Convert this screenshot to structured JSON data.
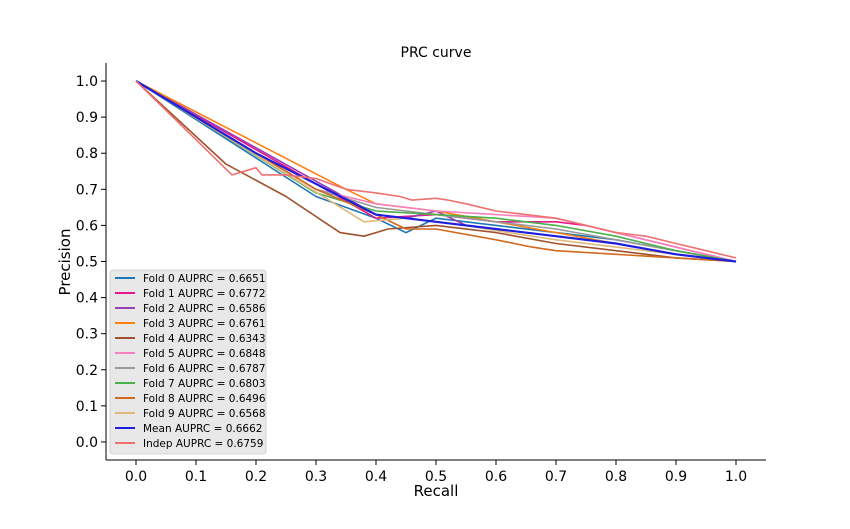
{
  "chart_data": {
    "type": "line",
    "title": "PRC curve",
    "xlabel": "Recall",
    "ylabel": "Precision",
    "xlim": [
      -0.05,
      1.05
    ],
    "ylim": [
      -0.05,
      1.05
    ],
    "x_ticks": [
      "0.0",
      "0.1",
      "0.2",
      "0.3",
      "0.4",
      "0.5",
      "0.6",
      "0.7",
      "0.8",
      "0.9",
      "1.0"
    ],
    "y_ticks": [
      "0.0",
      "0.1",
      "0.2",
      "0.3",
      "0.4",
      "0.5",
      "0.6",
      "0.7",
      "0.8",
      "0.9",
      "1.0"
    ],
    "grid": false,
    "legend_position": "lower-left",
    "series": [
      {
        "name": "Fold 0 AUPRC = 0.6651",
        "color": "#1f77b4",
        "x": [
          0.0,
          0.3,
          0.4,
          0.45,
          0.5,
          0.6,
          0.7,
          0.8,
          0.9,
          1.0
        ],
        "y": [
          1.0,
          0.68,
          0.62,
          0.58,
          0.62,
          0.6,
          0.58,
          0.56,
          0.53,
          0.5
        ]
      },
      {
        "name": "Fold 1 AUPRC = 0.6772",
        "color": "#e6198c",
        "x": [
          0.0,
          0.4,
          0.5,
          0.6,
          0.7,
          0.75,
          0.8,
          0.9,
          1.0
        ],
        "y": [
          1.0,
          0.62,
          0.63,
          0.61,
          0.61,
          0.6,
          0.58,
          0.54,
          0.5
        ]
      },
      {
        "name": "Fold 2 AUPRC = 0.6586",
        "color": "#9b3fb5",
        "x": [
          0.0,
          0.4,
          0.45,
          0.5,
          0.55,
          0.6,
          0.7,
          0.8,
          0.9,
          1.0
        ],
        "y": [
          1.0,
          0.63,
          0.62,
          0.64,
          0.6,
          0.59,
          0.57,
          0.55,
          0.52,
          0.5
        ]
      },
      {
        "name": "Fold 3 AUPRC = 0.6761",
        "color": "#ff7f0e",
        "x": [
          0.0,
          0.35,
          0.4,
          0.5,
          0.6,
          0.7,
          0.8,
          0.9,
          1.0
        ],
        "y": [
          1.0,
          0.7,
          0.66,
          0.64,
          0.61,
          0.58,
          0.55,
          0.52,
          0.5
        ]
      },
      {
        "name": "Fold 4 AUPRC = 0.6343",
        "color": "#a0522d",
        "x": [
          0.0,
          0.15,
          0.25,
          0.34,
          0.38,
          0.42,
          0.5,
          0.6,
          0.7,
          0.8,
          0.9,
          1.0
        ],
        "y": [
          1.0,
          0.77,
          0.68,
          0.58,
          0.57,
          0.59,
          0.6,
          0.58,
          0.55,
          0.53,
          0.51,
          0.5
        ]
      },
      {
        "name": "Fold 5 AUPRC = 0.6848",
        "color": "#f781bf",
        "x": [
          0.0,
          0.3,
          0.4,
          0.5,
          0.6,
          0.7,
          0.75,
          0.8,
          0.9,
          1.0
        ],
        "y": [
          1.0,
          0.7,
          0.66,
          0.64,
          0.63,
          0.62,
          0.6,
          0.58,
          0.54,
          0.5
        ]
      },
      {
        "name": "Fold 6 AUPRC = 0.6787",
        "color": "#999999",
        "x": [
          0.0,
          0.3,
          0.4,
          0.5,
          0.6,
          0.7,
          0.8,
          0.9,
          1.0
        ],
        "y": [
          1.0,
          0.7,
          0.65,
          0.63,
          0.61,
          0.59,
          0.56,
          0.53,
          0.5
        ]
      },
      {
        "name": "Fold 7 AUPRC = 0.6803",
        "color": "#4daf4a",
        "x": [
          0.0,
          0.3,
          0.4,
          0.5,
          0.6,
          0.7,
          0.8,
          0.9,
          1.0
        ],
        "y": [
          1.0,
          0.69,
          0.64,
          0.63,
          0.62,
          0.6,
          0.57,
          0.53,
          0.5
        ]
      },
      {
        "name": "Fold 8 AUPRC = 0.6496",
        "color": "#d2691e",
        "x": [
          0.0,
          0.3,
          0.4,
          0.45,
          0.5,
          0.6,
          0.66,
          0.7,
          0.8,
          0.9,
          1.0
        ],
        "y": [
          1.0,
          0.7,
          0.63,
          0.59,
          0.59,
          0.56,
          0.54,
          0.53,
          0.52,
          0.51,
          0.5
        ]
      },
      {
        "name": "Fold 9 AUPRC = 0.6568",
        "color": "#e0b97a",
        "x": [
          0.0,
          0.38,
          0.45,
          0.55,
          0.62,
          0.7,
          0.8,
          0.9,
          1.0
        ],
        "y": [
          1.0,
          0.61,
          0.62,
          0.6,
          0.58,
          0.56,
          0.54,
          0.52,
          0.5
        ]
      },
      {
        "name": "Mean AUPRC = 0.6662",
        "color": "#1f1fdd",
        "x": [
          0.0,
          0.2,
          0.4,
          0.5,
          0.6,
          0.7,
          0.8,
          0.9,
          1.0
        ],
        "y": [
          1.0,
          0.8,
          0.63,
          0.61,
          0.59,
          0.57,
          0.55,
          0.52,
          0.5
        ]
      },
      {
        "name": "Indep AUPRC = 0.6759",
        "color": "#f07070",
        "x": [
          0.0,
          0.16,
          0.2,
          0.21,
          0.25,
          0.3,
          0.35,
          0.4,
          0.44,
          0.46,
          0.5,
          0.52,
          0.55,
          0.6,
          0.65,
          0.7,
          0.75,
          0.8,
          0.85,
          0.9,
          0.95,
          1.0
        ],
        "y": [
          1.0,
          0.74,
          0.76,
          0.74,
          0.74,
          0.73,
          0.7,
          0.69,
          0.68,
          0.67,
          0.675,
          0.67,
          0.66,
          0.64,
          0.63,
          0.62,
          0.6,
          0.58,
          0.57,
          0.55,
          0.53,
          0.51
        ]
      }
    ]
  }
}
